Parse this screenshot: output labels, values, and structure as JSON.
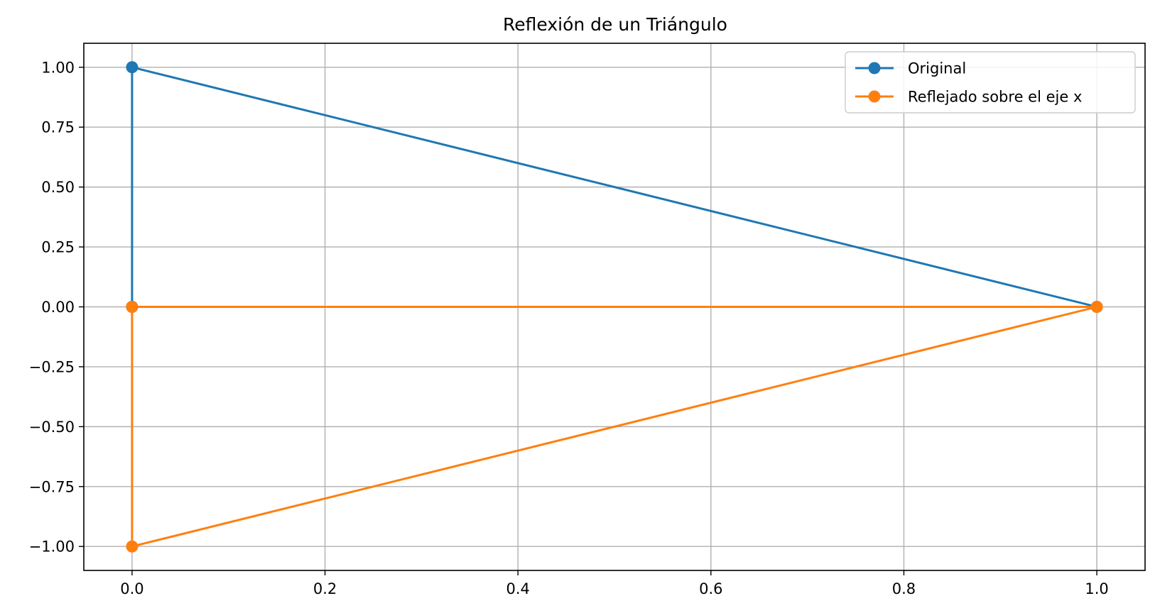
{
  "chart_data": {
    "type": "line",
    "title": "Reflexión de un Triángulo",
    "xlabel": "",
    "ylabel": "",
    "xlim": [
      -0.05,
      1.05
    ],
    "ylim": [
      -1.1,
      1.1
    ],
    "xticks": [
      0.0,
      0.2,
      0.4,
      0.6,
      0.8,
      1.0
    ],
    "xtick_labels": [
      "0.0",
      "0.2",
      "0.4",
      "0.6",
      "0.8",
      "1.0"
    ],
    "yticks": [
      -1.0,
      -0.75,
      -0.5,
      -0.25,
      0.0,
      0.25,
      0.5,
      0.75,
      1.0
    ],
    "ytick_labels": [
      "−1.00",
      "−0.75",
      "−0.50",
      "−0.25",
      "0.00",
      "0.25",
      "0.50",
      "0.75",
      "1.00"
    ],
    "grid": true,
    "legend_position": "top-right",
    "series": [
      {
        "name": "Original",
        "color": "#1f77b4",
        "x": [
          0,
          1,
          0,
          0
        ],
        "y": [
          0,
          0,
          1,
          0
        ]
      },
      {
        "name": "Reflejado sobre el eje x",
        "color": "#ff7f0e",
        "x": [
          0,
          1,
          0,
          0
        ],
        "y": [
          0,
          0,
          -1,
          0
        ]
      }
    ]
  }
}
